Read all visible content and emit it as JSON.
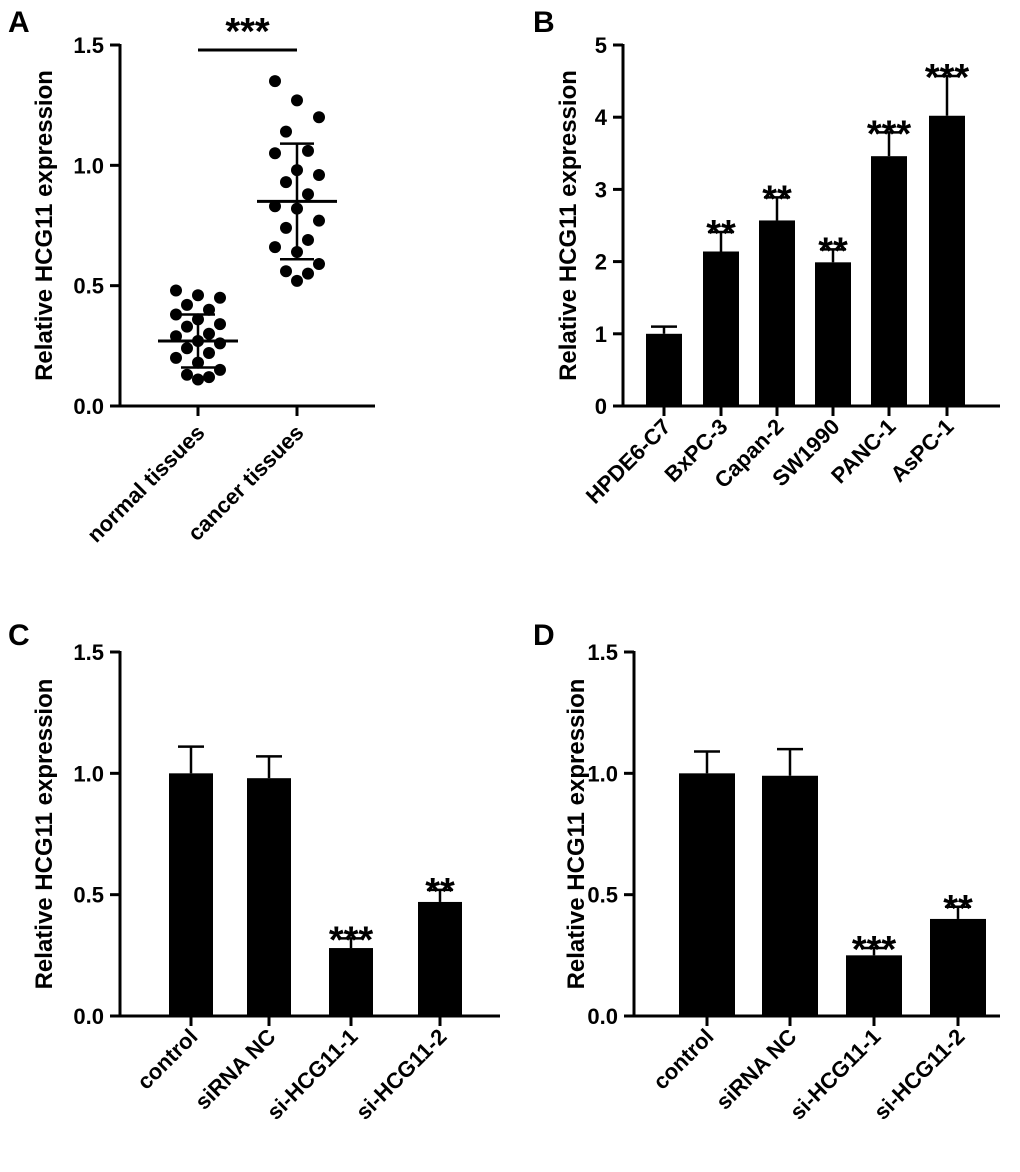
{
  "colors": {
    "bar": "#000000",
    "axis": "#000000",
    "background": "#ffffff"
  },
  "chart_data": [
    {
      "panel": "A",
      "type": "scatter",
      "ylabel": "Relative HCG11 expression",
      "ylim": [
        0,
        1.5
      ],
      "yticks": [
        "0.0",
        "0.5",
        "1.0",
        "1.5"
      ],
      "ytick_values": [
        0,
        0.5,
        1.0,
        1.5
      ],
      "categories": [
        "normal tissues",
        "cancer tissues"
      ],
      "groups": [
        {
          "name": "normal tissues",
          "mean": 0.27,
          "sd": 0.11,
          "points": [
            0.48,
            0.46,
            0.45,
            0.42,
            0.4,
            0.38,
            0.36,
            0.34,
            0.33,
            0.3,
            0.29,
            0.27,
            0.26,
            0.24,
            0.22,
            0.2,
            0.18,
            0.15,
            0.13,
            0.12,
            0.11
          ]
        },
        {
          "name": "cancer tissues",
          "mean": 0.85,
          "sd": 0.24,
          "points": [
            1.35,
            1.27,
            1.2,
            1.14,
            1.06,
            1.05,
            0.98,
            0.96,
            0.93,
            0.88,
            0.83,
            0.82,
            0.77,
            0.74,
            0.69,
            0.66,
            0.64,
            0.59,
            0.56,
            0.55,
            0.52
          ]
        }
      ],
      "significance": {
        "label": "***",
        "span": [
          "normal tissues",
          "cancer tissues"
        ]
      }
    },
    {
      "panel": "B",
      "type": "bar",
      "ylabel": "Relative HCG11 expression",
      "ylim": [
        0,
        5
      ],
      "yticks": [
        "0",
        "1",
        "2",
        "3",
        "4",
        "5"
      ],
      "ytick_values": [
        0,
        1,
        2,
        3,
        4,
        5
      ],
      "categories": [
        "HPDE6-C7",
        "BxPC-3",
        "Capan-2",
        "SW1990",
        "PANC-1",
        "AsPC-1"
      ],
      "values": [
        1.0,
        2.14,
        2.57,
        1.99,
        3.46,
        4.02
      ],
      "errors": [
        0.1,
        0.27,
        0.32,
        0.18,
        0.33,
        0.55
      ],
      "significance": [
        "",
        "**",
        "**",
        "**",
        "***",
        "***"
      ]
    },
    {
      "panel": "C",
      "type": "bar",
      "ylabel": "Relative HCG11 expression",
      "ylim": [
        0,
        1.5
      ],
      "yticks": [
        "0.0",
        "0.5",
        "1.0",
        "1.5"
      ],
      "ytick_values": [
        0,
        0.5,
        1.0,
        1.5
      ],
      "categories": [
        "control",
        "siRNA NC",
        "si-HCG11-1",
        "si-HCG11-2"
      ],
      "values": [
        1.0,
        0.98,
        0.28,
        0.47
      ],
      "errors": [
        0.11,
        0.09,
        0.04,
        0.05
      ],
      "significance": [
        "",
        "",
        "***",
        "**"
      ]
    },
    {
      "panel": "D",
      "type": "bar",
      "ylabel": "Relative HCG11 expression",
      "ylim": [
        0,
        1.5
      ],
      "yticks": [
        "0.0",
        "0.5",
        "1.0",
        "1.5"
      ],
      "ytick_values": [
        0,
        0.5,
        1.0,
        1.5
      ],
      "categories": [
        "control",
        "siRNA NC",
        "si-HCG11-1",
        "si-HCG11-2"
      ],
      "values": [
        1.0,
        0.99,
        0.25,
        0.4
      ],
      "errors": [
        0.09,
        0.11,
        0.03,
        0.05
      ],
      "significance": [
        "",
        "",
        "***",
        "**"
      ]
    }
  ]
}
